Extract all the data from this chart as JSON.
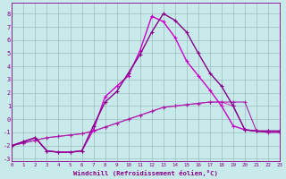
{
  "xlabel": "Windchill (Refroidissement éolien,°C)",
  "background_color": "#c8eaea",
  "grid_color": "#9bbfbf",
  "xlim": [
    0,
    23
  ],
  "ylim": [
    -3.2,
    8.8
  ],
  "yticks": [
    -3,
    -2,
    -1,
    0,
    1,
    2,
    3,
    4,
    5,
    6,
    7,
    8
  ],
  "xticks": [
    0,
    1,
    2,
    3,
    4,
    5,
    6,
    7,
    8,
    9,
    10,
    11,
    12,
    13,
    14,
    15,
    16,
    17,
    18,
    19,
    20,
    21,
    22,
    23
  ],
  "series": [
    {
      "x": [
        0,
        1,
        2,
        3,
        4,
        5,
        6,
        7,
        8,
        9,
        10,
        11,
        12,
        13,
        14,
        15,
        16,
        17,
        18,
        19,
        20,
        21,
        22,
        23
      ],
      "y": [
        -2.0,
        -1.8,
        -1.6,
        -1.4,
        -1.3,
        -1.2,
        -1.1,
        -0.9,
        -0.6,
        -0.3,
        0.0,
        0.3,
        0.6,
        0.9,
        1.0,
        1.1,
        1.2,
        1.3,
        1.3,
        1.0,
        -0.8,
        -0.9,
        -1.0,
        -1.0
      ],
      "color": "#cc44cc",
      "lw": 0.8
    },
    {
      "x": [
        0,
        1,
        2,
        3,
        4,
        5,
        6,
        7,
        8,
        9,
        10,
        11,
        12,
        13,
        14,
        15,
        16,
        17,
        18,
        19,
        20,
        21,
        22,
        23
      ],
      "y": [
        -2.0,
        -1.8,
        -1.6,
        -1.4,
        -1.3,
        -1.2,
        -1.1,
        -0.9,
        -0.6,
        -0.3,
        0.0,
        0.3,
        0.6,
        0.9,
        1.0,
        1.1,
        1.2,
        1.3,
        1.3,
        1.3,
        1.3,
        -0.9,
        -1.0,
        -1.0
      ],
      "color": "#aa22aa",
      "lw": 0.8
    },
    {
      "x": [
        0,
        1,
        2,
        3,
        4,
        5,
        6,
        7,
        8,
        9,
        10,
        11,
        12,
        13,
        14,
        15,
        16,
        17,
        18,
        19,
        20,
        21,
        22,
        23
      ],
      "y": [
        -2.0,
        -1.7,
        -1.4,
        -2.4,
        -2.5,
        -2.5,
        -2.4,
        -0.8,
        1.7,
        2.5,
        3.3,
        5.2,
        7.8,
        7.4,
        6.2,
        4.4,
        3.3,
        2.2,
        1.0,
        -0.5,
        -0.8,
        -0.9,
        -0.9,
        -0.9
      ],
      "color": "#cc00cc",
      "lw": 1.0
    },
    {
      "x": [
        0,
        1,
        2,
        3,
        4,
        5,
        6,
        7,
        8,
        9,
        10,
        11,
        12,
        13,
        14,
        15,
        16,
        17,
        18,
        19,
        20,
        21,
        22,
        23
      ],
      "y": [
        -2.0,
        -1.7,
        -1.4,
        -2.4,
        -2.5,
        -2.5,
        -2.4,
        -0.5,
        1.3,
        2.1,
        3.5,
        4.9,
        6.6,
        8.0,
        7.5,
        6.6,
        5.0,
        3.5,
        2.5,
        1.0,
        -0.8,
        -0.9,
        -0.9,
        -0.9
      ],
      "color": "#880088",
      "lw": 1.0
    }
  ]
}
